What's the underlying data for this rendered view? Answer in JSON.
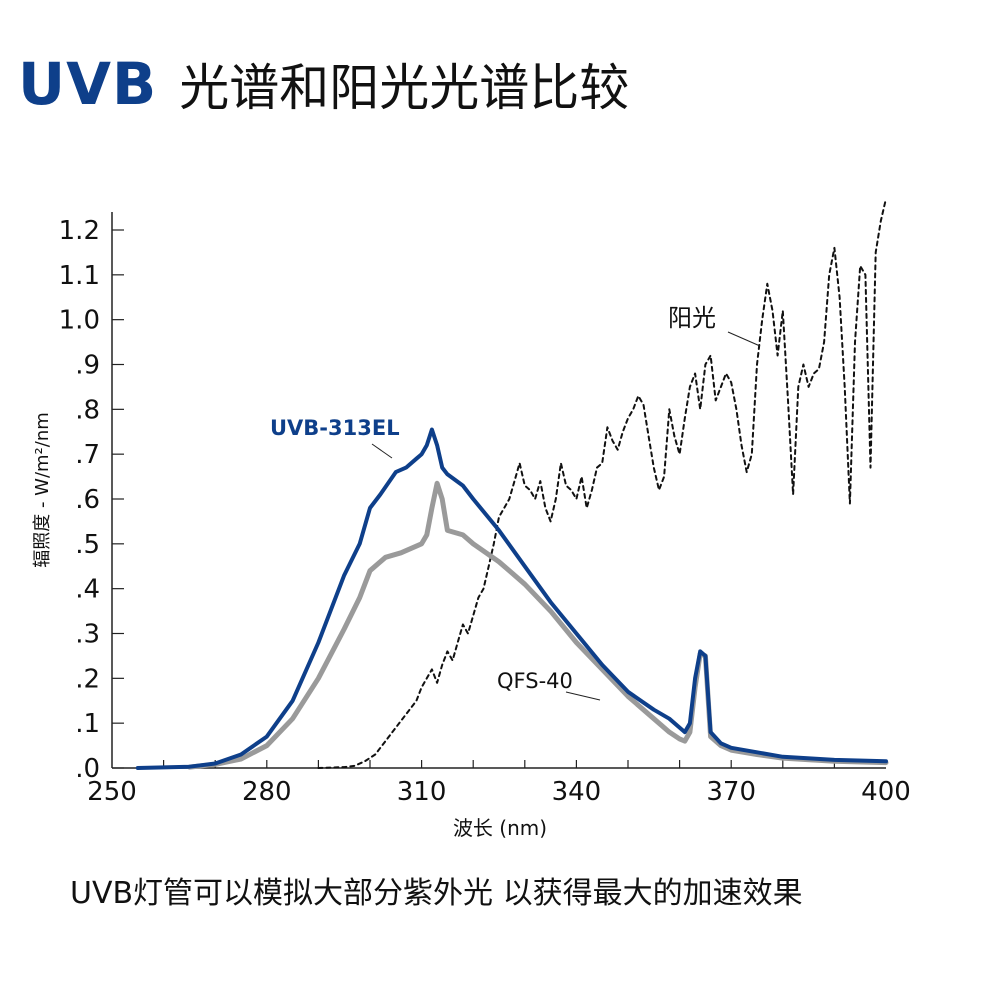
{
  "header": {
    "title_prefix": "UVB",
    "title_suffix": "光谱和阳光光谱比较"
  },
  "caption": "UVB灯管可以模拟大部分紫外光 以获得最大的加速效果",
  "chart_data": {
    "type": "line",
    "title": "UVB 光谱和阳光光谱比较",
    "xlabel": "波长 (nm)",
    "ylabel": "辐照度 - W/m²/nm",
    "xlim": [
      250,
      400
    ],
    "ylim": [
      0,
      1.2
    ],
    "x_ticks": [
      250,
      280,
      310,
      340,
      370,
      400
    ],
    "x_tick_labels": [
      "250",
      "280",
      "310",
      "340",
      "370",
      "400"
    ],
    "y_ticks": [
      0,
      0.1,
      0.2,
      0.3,
      0.4,
      0.5,
      0.6,
      0.7,
      0.8,
      0.9,
      1.0,
      1.1,
      1.2
    ],
    "y_tick_labels": [
      ".0",
      ".1",
      ".2",
      ".3",
      ".4",
      ".5",
      ".6",
      ".7",
      ".8",
      ".9",
      "1.0",
      "1.1",
      "1.2"
    ],
    "grid": false,
    "colors": {
      "uvb313": "#0e3f8a",
      "qfs40": "#9a9a9a",
      "sunlight": "#111111",
      "axis": "#222222"
    },
    "series": [
      {
        "name": "UVB-313EL",
        "key": "uvb313",
        "x": [
          255,
          265,
          270,
          275,
          280,
          285,
          290,
          295,
          298,
          300,
          302,
          305,
          307,
          309,
          310,
          311,
          312,
          313,
          314,
          315,
          318,
          320,
          325,
          330,
          335,
          340,
          345,
          350,
          355,
          358,
          360,
          361,
          362,
          363,
          364,
          365,
          366,
          368,
          370,
          375,
          380,
          390,
          400
        ],
        "y": [
          0.0,
          0.003,
          0.01,
          0.03,
          0.07,
          0.15,
          0.28,
          0.43,
          0.5,
          0.58,
          0.61,
          0.66,
          0.67,
          0.69,
          0.7,
          0.72,
          0.755,
          0.72,
          0.67,
          0.655,
          0.63,
          0.6,
          0.53,
          0.45,
          0.37,
          0.3,
          0.23,
          0.17,
          0.13,
          0.11,
          0.09,
          0.08,
          0.1,
          0.2,
          0.26,
          0.25,
          0.08,
          0.055,
          0.045,
          0.035,
          0.025,
          0.018,
          0.015
        ]
      },
      {
        "name": "QFS-40",
        "key": "qfs40",
        "x": [
          265,
          270,
          275,
          280,
          285,
          290,
          295,
          298,
          300,
          303,
          306,
          308,
          310,
          311,
          312,
          313,
          314,
          315,
          318,
          320,
          325,
          330,
          335,
          340,
          345,
          350,
          355,
          358,
          360,
          361,
          362,
          363,
          364,
          365,
          366,
          368,
          370,
          375,
          380,
          390,
          400
        ],
        "y": [
          0.002,
          0.008,
          0.02,
          0.05,
          0.11,
          0.2,
          0.31,
          0.38,
          0.44,
          0.47,
          0.48,
          0.49,
          0.5,
          0.52,
          0.58,
          0.635,
          0.6,
          0.53,
          0.52,
          0.5,
          0.46,
          0.41,
          0.35,
          0.28,
          0.22,
          0.16,
          0.11,
          0.08,
          0.065,
          0.06,
          0.08,
          0.18,
          0.255,
          0.25,
          0.07,
          0.05,
          0.04,
          0.03,
          0.022,
          0.015,
          0.012
        ]
      },
      {
        "name": "阳光",
        "key": "sunlight",
        "x": [
          290,
          295,
          297,
          299,
          301,
          303,
          305,
          307,
          309,
          310,
          311,
          312,
          313,
          314,
          315,
          316,
          317,
          318,
          319,
          320,
          321,
          322,
          323,
          324,
          325,
          326,
          327,
          328,
          329,
          330,
          331,
          332,
          333,
          334,
          335,
          336,
          337,
          338,
          339,
          340,
          341,
          342,
          343,
          344,
          345,
          346,
          347,
          348,
          349,
          350,
          351,
          352,
          353,
          354,
          355,
          356,
          357,
          358,
          359,
          360,
          361,
          362,
          363,
          364,
          365,
          366,
          367,
          368,
          369,
          370,
          371,
          372,
          373,
          374,
          375,
          376,
          377,
          378,
          379,
          380,
          381,
          382,
          383,
          384,
          385,
          386,
          387,
          388,
          389,
          390,
          391,
          392,
          393,
          394,
          395,
          396,
          397,
          398,
          399,
          400
        ],
        "y": [
          0.0,
          0.002,
          0.005,
          0.015,
          0.03,
          0.06,
          0.09,
          0.12,
          0.15,
          0.18,
          0.2,
          0.22,
          0.19,
          0.23,
          0.26,
          0.24,
          0.28,
          0.32,
          0.3,
          0.34,
          0.38,
          0.4,
          0.45,
          0.5,
          0.56,
          0.58,
          0.6,
          0.64,
          0.68,
          0.63,
          0.62,
          0.6,
          0.64,
          0.58,
          0.55,
          0.6,
          0.68,
          0.63,
          0.62,
          0.6,
          0.65,
          0.58,
          0.62,
          0.67,
          0.68,
          0.76,
          0.73,
          0.71,
          0.75,
          0.78,
          0.8,
          0.83,
          0.81,
          0.74,
          0.67,
          0.62,
          0.65,
          0.8,
          0.74,
          0.7,
          0.78,
          0.85,
          0.88,
          0.8,
          0.9,
          0.92,
          0.82,
          0.85,
          0.88,
          0.86,
          0.8,
          0.72,
          0.66,
          0.7,
          0.9,
          1.0,
          1.08,
          1.02,
          0.92,
          1.02,
          0.82,
          0.61,
          0.85,
          0.9,
          0.85,
          0.88,
          0.89,
          0.95,
          1.1,
          1.16,
          1.05,
          0.85,
          0.59,
          0.95,
          1.12,
          1.1,
          0.67,
          1.15,
          1.22,
          1.27
        ]
      }
    ],
    "annotations": [
      {
        "text": "UVB-313EL",
        "series": "uvb313"
      },
      {
        "text": "QFS-40",
        "series": "qfs40"
      },
      {
        "text": "阳光",
        "series": "sunlight"
      }
    ]
  }
}
